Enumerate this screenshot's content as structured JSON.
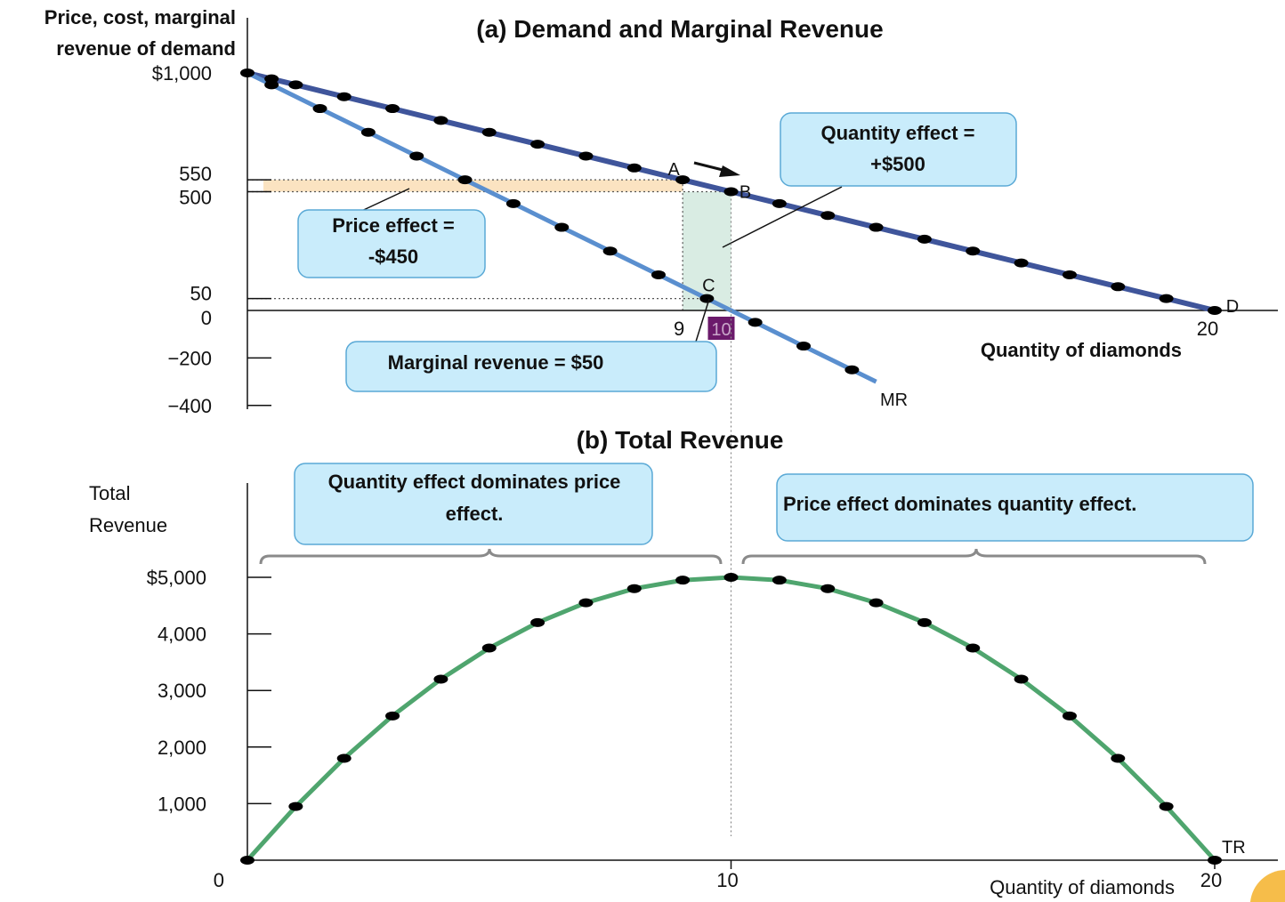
{
  "chart_data": [
    {
      "type": "line",
      "title": "(a) Demand and Marginal Revenue",
      "ylabel": [
        "Price, cost, marginal",
        "revenue of demand"
      ],
      "xlabel": "Quantity of diamonds",
      "xlim": [
        0,
        20
      ],
      "ylim": [
        -400,
        1000
      ],
      "yticks": [
        {
          "value": 1000,
          "label": "$1,000"
        },
        {
          "value": 550,
          "label": "550"
        },
        {
          "value": 500,
          "label": "500"
        },
        {
          "value": 50,
          "label": "50"
        },
        {
          "value": 0,
          "label": "0"
        },
        {
          "value": -200,
          "label": "−200"
        },
        {
          "value": -400,
          "label": "−400"
        }
      ],
      "xticks": [
        {
          "value": 9,
          "label": "9"
        },
        {
          "value": 10,
          "label": "10",
          "highlight": "#6b1a6b"
        },
        {
          "value": 20,
          "label": "20"
        }
      ],
      "series": [
        {
          "name": "D",
          "color": "#3f559b",
          "x": [
            0,
            0.5,
            1,
            2,
            3,
            4,
            5,
            6,
            7,
            8,
            9,
            10,
            11,
            12,
            13,
            14,
            15,
            16,
            17,
            18,
            19,
            20
          ],
          "y": [
            1000,
            975,
            950,
            900,
            850,
            800,
            750,
            700,
            650,
            600,
            550,
            500,
            450,
            400,
            350,
            300,
            250,
            200,
            150,
            100,
            50,
            0
          ]
        },
        {
          "name": "MR",
          "color": "#5a8fcf",
          "x": [
            0,
            0.5,
            1.5,
            2.5,
            3.5,
            4.5,
            5.5,
            6.5,
            7.5,
            8.5,
            9.5,
            10.5,
            11.5,
            12.5,
            13
          ],
          "y": [
            1000,
            950,
            850,
            750,
            650,
            550,
            450,
            350,
            250,
            150,
            50,
            -50,
            -150,
            -250,
            -300
          ]
        }
      ],
      "points": [
        {
          "label": "A",
          "x": 9,
          "y": 550
        },
        {
          "label": "B",
          "x": 10,
          "y": 500
        },
        {
          "label": "C",
          "x": 9.5,
          "y": 50
        },
        {
          "label": "D",
          "x": 20,
          "y": 0
        },
        {
          "label": "MR",
          "x": 13,
          "y": -300
        }
      ],
      "annotations": {
        "price_effect": [
          "Price effect =",
          "-$450"
        ],
        "quantity_effect": [
          "Quantity effect =",
          "+$500"
        ],
        "marginal_revenue": "Marginal revenue = $50"
      },
      "colors": {
        "price_effect_area": "#fbe3c1",
        "quantity_effect_area": "#d9ece3"
      }
    },
    {
      "type": "line",
      "title": "(b) Total Revenue",
      "ylabel": [
        "Total",
        "Revenue"
      ],
      "xlabel": "Quantity of diamonds",
      "xlim": [
        0,
        20
      ],
      "ylim": [
        0,
        5000
      ],
      "yticks": [
        {
          "value": 5000,
          "label": "$5,000"
        },
        {
          "value": 4000,
          "label": "4,000"
        },
        {
          "value": 3000,
          "label": "3,000"
        },
        {
          "value": 2000,
          "label": "2,000"
        },
        {
          "value": 1000,
          "label": "1,000"
        },
        {
          "value": 0,
          "label": "0"
        }
      ],
      "xticks": [
        {
          "value": 10,
          "label": "10"
        },
        {
          "value": 20,
          "label": "20"
        }
      ],
      "series": [
        {
          "name": "TR",
          "color": "#4fa56e",
          "x": [
            0,
            1,
            2,
            3,
            4,
            5,
            6,
            7,
            8,
            9,
            10,
            11,
            12,
            13,
            14,
            15,
            16,
            17,
            18,
            19,
            20
          ],
          "y": [
            0,
            950,
            1800,
            2550,
            3200,
            3750,
            4200,
            4550,
            4800,
            4950,
            5000,
            4950,
            4800,
            4550,
            4200,
            3750,
            3200,
            2550,
            1800,
            950,
            0
          ]
        }
      ],
      "annotations": {
        "left": [
          "Quantity effect dominates price",
          "effect."
        ],
        "right": "Price effect dominates quantity effect."
      }
    }
  ]
}
